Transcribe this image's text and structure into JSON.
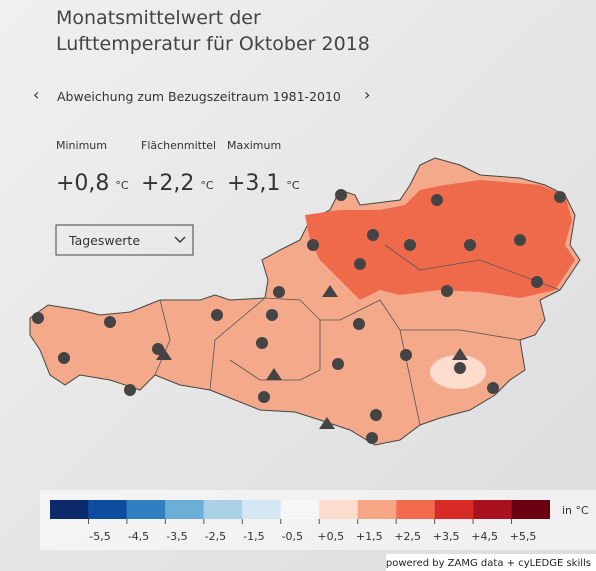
{
  "header": {
    "title_lines": [
      "Monatsmittelwert der",
      "Lufttemperatur für Oktober 2018"
    ],
    "subtitle": "Abweichung zum Bezugszeitraum 1981-2010"
  },
  "stats": [
    {
      "label": "Minimum",
      "value": "+0,8",
      "unit": "°C"
    },
    {
      "label": "Flächenmittel",
      "value": "+2,2",
      "unit": "°C"
    },
    {
      "label": "Maximum",
      "value": "+3,1",
      "unit": "°C"
    }
  ],
  "dropdown": "Tageswerte",
  "legend": {
    "colors": [
      "#0c2a6a",
      "#0c4d9f",
      "#2f80c1",
      "#6bafd7",
      "#aad0e6",
      "#d5e6f3",
      "#f6f6f6",
      "#fbdccd",
      "#f6a585",
      "#f26b4c",
      "#d92b26",
      "#a8111d",
      "#6a0011"
    ],
    "labels": [
      "-5,5",
      "-4,5",
      "-3,5",
      "-2,5",
      "-1,5",
      "-0,5",
      "+0,5",
      "+1,5",
      "+2,5",
      "+3,5",
      "+4,5",
      "+5,5"
    ],
    "unit": "in °C"
  },
  "credit": "powered by ZAMG data + cyLEDGE skills"
}
